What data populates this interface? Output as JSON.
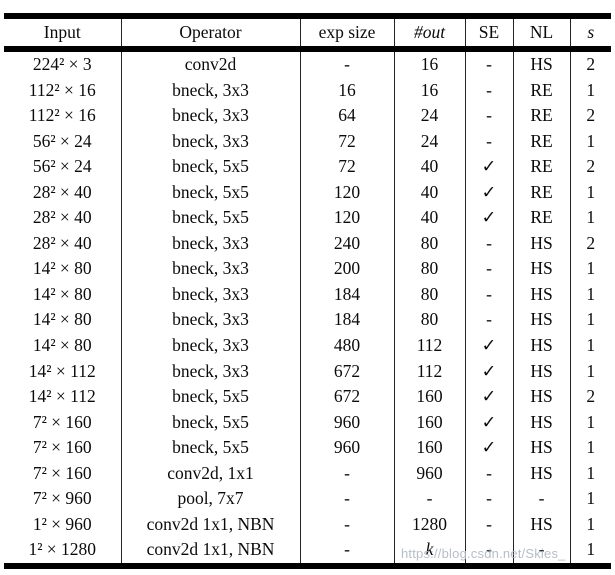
{
  "table": {
    "headers": [
      "Input",
      "Operator",
      "exp size",
      "#out",
      "SE",
      "NL",
      "s"
    ],
    "rows": [
      [
        "224² × 3",
        "conv2d",
        "-",
        "16",
        "-",
        "HS",
        "2"
      ],
      [
        "112² × 16",
        "bneck, 3x3",
        "16",
        "16",
        "-",
        "RE",
        "1"
      ],
      [
        "112² × 16",
        "bneck, 3x3",
        "64",
        "24",
        "-",
        "RE",
        "2"
      ],
      [
        "56² × 24",
        "bneck, 3x3",
        "72",
        "24",
        "-",
        "RE",
        "1"
      ],
      [
        "56² × 24",
        "bneck, 5x5",
        "72",
        "40",
        "✓",
        "RE",
        "2"
      ],
      [
        "28² × 40",
        "bneck, 5x5",
        "120",
        "40",
        "✓",
        "RE",
        "1"
      ],
      [
        "28² × 40",
        "bneck, 5x5",
        "120",
        "40",
        "✓",
        "RE",
        "1"
      ],
      [
        "28² × 40",
        "bneck, 3x3",
        "240",
        "80",
        "-",
        "HS",
        "2"
      ],
      [
        "14² × 80",
        "bneck, 3x3",
        "200",
        "80",
        "-",
        "HS",
        "1"
      ],
      [
        "14² × 80",
        "bneck, 3x3",
        "184",
        "80",
        "-",
        "HS",
        "1"
      ],
      [
        "14² × 80",
        "bneck, 3x3",
        "184",
        "80",
        "-",
        "HS",
        "1"
      ],
      [
        "14² × 80",
        "bneck, 3x3",
        "480",
        "112",
        "✓",
        "HS",
        "1"
      ],
      [
        "14² × 112",
        "bneck, 3x3",
        "672",
        "112",
        "✓",
        "HS",
        "1"
      ],
      [
        "14² × 112",
        "bneck, 5x5",
        "672",
        "160",
        "✓",
        "HS",
        "2"
      ],
      [
        "7² × 160",
        "bneck, 5x5",
        "960",
        "160",
        "✓",
        "HS",
        "1"
      ],
      [
        "7² × 160",
        "bneck, 5x5",
        "960",
        "160",
        "✓",
        "HS",
        "1"
      ],
      [
        "7² × 160",
        "conv2d, 1x1",
        "-",
        "960",
        "-",
        "HS",
        "1"
      ],
      [
        "7² × 960",
        "pool, 7x7",
        "-",
        "-",
        "-",
        "-",
        "1"
      ],
      [
        "1² × 960",
        "conv2d 1x1, NBN",
        "-",
        "1280",
        "-",
        "HS",
        "1"
      ],
      [
        "1² × 1280",
        "conv2d 1x1, NBN",
        "-",
        "k",
        "-",
        "-",
        "1"
      ]
    ],
    "colors": {
      "rule": "#000000",
      "grid": "#242424",
      "text": "#0b0b0b"
    }
  },
  "watermark": {
    "text": "https://blog.csdn.net/Skies_",
    "color": "#b2bac3"
  }
}
